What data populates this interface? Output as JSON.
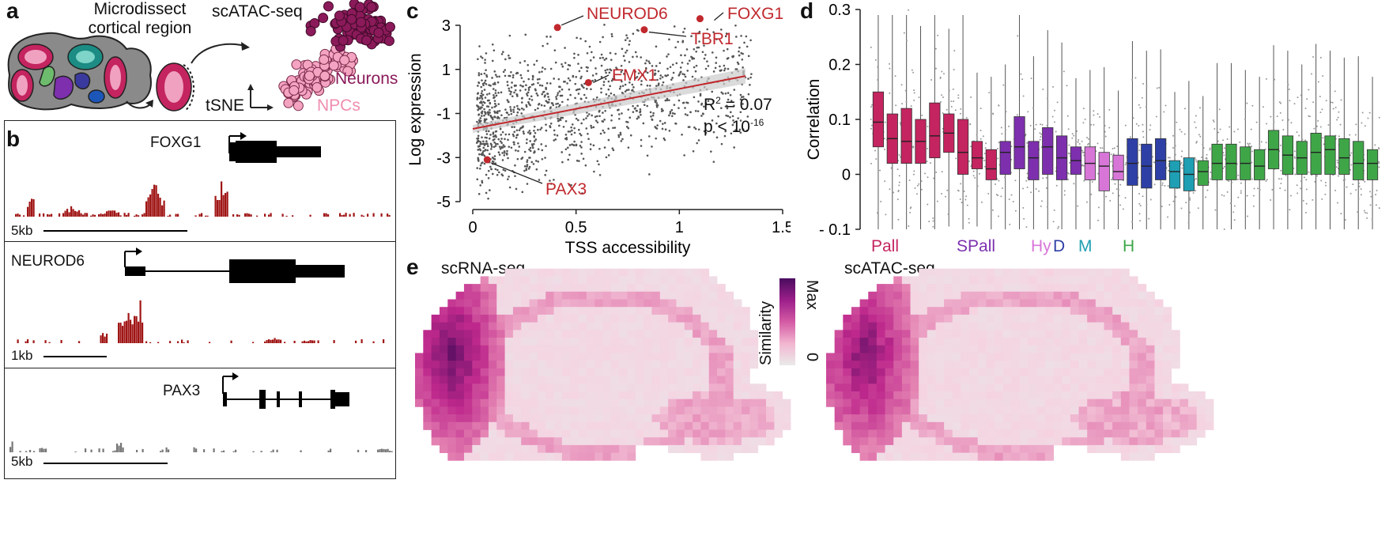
{
  "panel_a": {
    "letter": "a",
    "microdissect_line1": "Microdissect",
    "microdissect_line2": "cortical region",
    "method": "scATAC-seq",
    "tsne": "tSNE",
    "neurons": "Neurons",
    "npcs": "NPCs"
  },
  "panel_b": {
    "letter": "b",
    "tracks": [
      {
        "gene": "FOXG1",
        "scale": "5kb"
      },
      {
        "gene": "NEUROD6",
        "scale": "1kb"
      },
      {
        "gene": "PAX3",
        "scale": "5kb"
      }
    ]
  },
  "panel_c": {
    "letter": "c",
    "r2_label": "R",
    "r2_value": "= 0.07",
    "p_label": "p < 10",
    "p_exp": "-16"
  },
  "panel_d": {
    "letter": "d",
    "groups": [
      {
        "label": "Pall",
        "color": "#c4245f"
      },
      {
        "label": "SPall",
        "color": "#7d2fae"
      },
      {
        "label": "Hy",
        "color": "#d876d8"
      },
      {
        "label": "D",
        "color": "#2e3fa6"
      },
      {
        "label": "M",
        "color": "#1f9fb3"
      },
      {
        "label": "H",
        "color": "#3fa648"
      }
    ]
  },
  "panel_e": {
    "letter": "e",
    "left_title": "scRNA-seq",
    "right_title": "scATAC-seq",
    "colorbar_label": "Similarity",
    "colorbar_max": "Max",
    "colorbar_min": "0"
  },
  "chart_data": [
    {
      "type": "scatter",
      "panel": "c",
      "xlabel": "TSS accessibility",
      "ylabel": "Log expression",
      "xlim": [
        0,
        1.5
      ],
      "ylim": [
        -5,
        3
      ],
      "xticks": [
        "0",
        "0.5",
        "1",
        "1.5"
      ],
      "yticks": [
        "-5",
        "-3",
        "-1",
        "1",
        "3"
      ],
      "highlighted": [
        {
          "label": "NEUROD6",
          "x": 0.41,
          "y": 2.9
        },
        {
          "label": "FOXG1",
          "x": 1.1,
          "y": 3.3
        },
        {
          "label": "TBR1",
          "x": 0.83,
          "y": 2.8
        },
        {
          "label": "EMX1",
          "x": 0.56,
          "y": 0.4
        },
        {
          "label": "PAX3",
          "x": 0.07,
          "y": -3.1
        }
      ],
      "fit_line": {
        "x": [
          0,
          1.32
        ],
        "y": [
          -1.7,
          0.7
        ]
      },
      "highlight_color": "#c0282d"
    },
    {
      "type": "box",
      "panel": "d",
      "ylabel": "Correlation",
      "ylim": [
        -0.1,
        0.3
      ],
      "yticks": [
        "- 0.1",
        "0",
        "0.1",
        "0.2",
        "0.3"
      ],
      "boxes": [
        {
          "group": "Pall",
          "q1": 0.05,
          "median": 0.095,
          "q3": 0.15
        },
        {
          "group": "Pall",
          "q1": 0.02,
          "median": 0.065,
          "q3": 0.11
        },
        {
          "group": "Pall",
          "q1": 0.02,
          "median": 0.06,
          "q3": 0.12
        },
        {
          "group": "Pall",
          "q1": 0.02,
          "median": 0.06,
          "q3": 0.1
        },
        {
          "group": "Pall",
          "q1": 0.03,
          "median": 0.07,
          "q3": 0.13
        },
        {
          "group": "Pall",
          "q1": 0.04,
          "median": 0.075,
          "q3": 0.11
        },
        {
          "group": "Pall",
          "q1": 0.0,
          "median": 0.04,
          "q3": 0.1
        },
        {
          "group": "Pall",
          "q1": 0.01,
          "median": 0.03,
          "q3": 0.06
        },
        {
          "group": "Pall",
          "q1": -0.01,
          "median": 0.01,
          "q3": 0.045
        },
        {
          "group": "SPall",
          "q1": 0.0,
          "median": 0.04,
          "q3": 0.06
        },
        {
          "group": "SPall",
          "q1": 0.01,
          "median": 0.05,
          "q3": 0.105
        },
        {
          "group": "SPall",
          "q1": -0.01,
          "median": 0.03,
          "q3": 0.06
        },
        {
          "group": "SPall",
          "q1": 0.0,
          "median": 0.05,
          "q3": 0.085
        },
        {
          "group": "SPall",
          "q1": -0.01,
          "median": 0.03,
          "q3": 0.07
        },
        {
          "group": "SPall",
          "q1": 0.0,
          "median": 0.025,
          "q3": 0.05
        },
        {
          "group": "Hy",
          "q1": -0.01,
          "median": 0.02,
          "q3": 0.05
        },
        {
          "group": "Hy",
          "q1": -0.03,
          "median": 0.015,
          "q3": 0.04
        },
        {
          "group": "Hy",
          "q1": -0.01,
          "median": 0.005,
          "q3": 0.035
        },
        {
          "group": "D",
          "q1": -0.02,
          "median": 0.02,
          "q3": 0.065
        },
        {
          "group": "D",
          "q1": -0.025,
          "median": 0.015,
          "q3": 0.055
        },
        {
          "group": "D",
          "q1": -0.01,
          "median": 0.025,
          "q3": 0.065
        },
        {
          "group": "M",
          "q1": -0.025,
          "median": 0.005,
          "q3": 0.025
        },
        {
          "group": "M",
          "q1": -0.03,
          "median": 0.0,
          "q3": 0.03
        },
        {
          "group": "H",
          "q1": -0.02,
          "median": 0.005,
          "q3": 0.025
        },
        {
          "group": "H",
          "q1": -0.01,
          "median": 0.02,
          "q3": 0.055
        },
        {
          "group": "H",
          "q1": -0.01,
          "median": 0.02,
          "q3": 0.055
        },
        {
          "group": "H",
          "q1": -0.01,
          "median": 0.02,
          "q3": 0.05
        },
        {
          "group": "H",
          "q1": -0.01,
          "median": 0.015,
          "q3": 0.045
        },
        {
          "group": "H",
          "q1": 0.01,
          "median": 0.045,
          "q3": 0.08
        },
        {
          "group": "H",
          "q1": 0.0,
          "median": 0.035,
          "q3": 0.07
        },
        {
          "group": "H",
          "q1": 0.0,
          "median": 0.03,
          "q3": 0.06
        },
        {
          "group": "H",
          "q1": 0.0,
          "median": 0.04,
          "q3": 0.075
        },
        {
          "group": "H",
          "q1": 0.0,
          "median": 0.045,
          "q3": 0.07
        },
        {
          "group": "H",
          "q1": 0.0,
          "median": 0.03,
          "q3": 0.065
        },
        {
          "group": "H",
          "q1": -0.01,
          "median": 0.02,
          "q3": 0.06
        },
        {
          "group": "H",
          "q1": -0.01,
          "median": 0.02,
          "q3": 0.045
        }
      ]
    }
  ]
}
